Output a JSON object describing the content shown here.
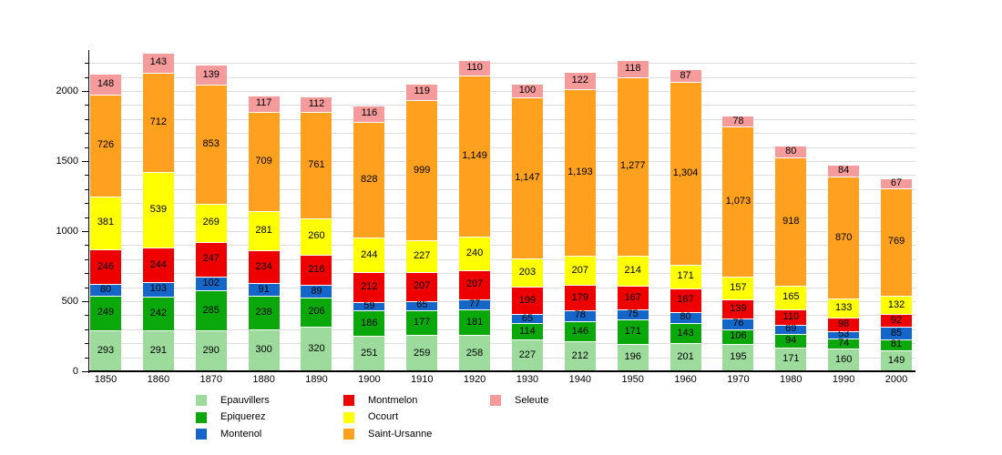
{
  "chart_data": {
    "type": "bar",
    "stacked": true,
    "title": "",
    "xlabel": "",
    "ylabel": "",
    "categories": [
      "1850",
      "1860",
      "1870",
      "1880",
      "1890",
      "1900",
      "1910",
      "1920",
      "1930",
      "1940",
      "1950",
      "1960",
      "1970",
      "1980",
      "1990",
      "2000"
    ],
    "series": [
      {
        "name": "Epauvillers",
        "color": "#9CDB9C",
        "values": [
          293,
          291,
          290,
          300,
          320,
          251,
          259,
          258,
          227,
          212,
          196,
          201,
          195,
          171,
          160,
          149
        ]
      },
      {
        "name": "Epiquerez",
        "color": "#0BA80B",
        "values": [
          249,
          242,
          285,
          238,
          206,
          186,
          177,
          181,
          114,
          146,
          171,
          143,
          106,
          94,
          74,
          81
        ]
      },
      {
        "name": "Montenol",
        "color": "#1467C8",
        "values": [
          80,
          103,
          102,
          91,
          89,
          59,
          65,
          77,
          65,
          78,
          75,
          80,
          76,
          69,
          53,
          85
        ]
      },
      {
        "name": "Montmelon",
        "color": "#EE0000",
        "values": [
          246,
          244,
          247,
          234,
          216,
          212,
          207,
          207,
          199,
          179,
          167,
          167,
          139,
          110,
          98,
          92
        ]
      },
      {
        "name": "Ocourt",
        "color": "#FFFF00",
        "values": [
          381,
          539,
          269,
          281,
          260,
          244,
          227,
          240,
          203,
          207,
          214,
          171,
          157,
          165,
          133,
          132
        ]
      },
      {
        "name": "Saint-Ursanne",
        "color": "#FFA11E",
        "values": [
          726,
          712,
          853,
          709,
          761,
          828,
          999,
          1149,
          1147,
          1193,
          1277,
          1304,
          1073,
          918,
          870,
          769
        ]
      },
      {
        "name": "Seleute",
        "color": "#F59B9B",
        "values": [
          148,
          143,
          139,
          117,
          112,
          116,
          119,
          110,
          100,
          122,
          118,
          87,
          78,
          80,
          84,
          67
        ]
      }
    ],
    "ylim": [
      0,
      2292
    ],
    "yticks": [
      0,
      500,
      1000,
      1500,
      2000
    ],
    "grid": "horizontal",
    "grid_interval": 100,
    "minor_tick_interval": 100,
    "major_tick_interval": 500,
    "value_labels": "on, comma thousands separator",
    "legend_position": "bottom",
    "legend_columns": [
      [
        "Epauvillers",
        "Epiquerez",
        "Montenol"
      ],
      [
        "Montmelon",
        "Ocourt",
        "Saint-Ursanne"
      ],
      [
        "Seleute"
      ]
    ],
    "colors": {
      "gridline": "#dcdcdc",
      "axis": "#000000",
      "text": "#000000",
      "background": "#ffffff"
    }
  }
}
